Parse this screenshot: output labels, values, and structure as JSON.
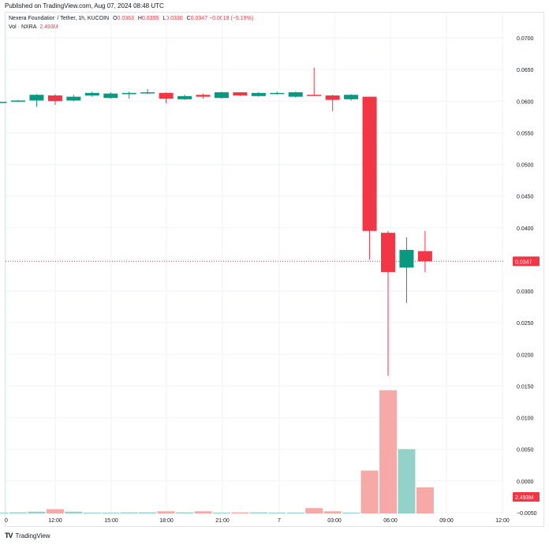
{
  "header": {
    "published": "Published on TradingView.com, Aug 07, 2024 08:48 UTC"
  },
  "legend": {
    "symbol": "Nexera Foundation / Tether, 1h, KUCOIN",
    "o_label": "O",
    "o_value": "0.0363",
    "h_label": "H",
    "h_value": "0.0395",
    "l_label": "L",
    "l_value": "0.0330",
    "c_label": "C",
    "c_value": "0.0347",
    "change": "−0.0019 (−5.19%)",
    "vol_label": "Vol · NXRA",
    "vol_value": "2.493M"
  },
  "footer": {
    "brand": "TradingView",
    "logo_icon": "tradingview-logo-icon"
  },
  "colors": {
    "up": "#089981",
    "down": "#f23645",
    "vol_up": "#92d2c8",
    "vol_down": "#f7a9a7",
    "grid": "#f0f3fa"
  },
  "chart_data": {
    "type": "candlestick",
    "price_labels": [
      "0.0700",
      "0.0650",
      "0.0600",
      "0.0550",
      "0.0500",
      "0.0450",
      "0.0400",
      "0.0350",
      "0.0300",
      "0.0250",
      "0.0200",
      "0.0150",
      "0.0100",
      "0.0050",
      "0.0000",
      "−0.0050"
    ],
    "time_labels": [
      "0",
      "12:00",
      "15:00",
      "18:00",
      "21:00",
      "7",
      "03:00",
      "06:00",
      "09:00",
      "12:00"
    ],
    "last_price_label": "0.0347",
    "last_price": 0.0347,
    "volume_label": "2.493M",
    "grid": true,
    "candles": [
      {
        "o": 0.0599,
        "h": 0.0601,
        "l": 0.0597,
        "c": 0.0599
      },
      {
        "o": 0.06,
        "h": 0.0602,
        "l": 0.0599,
        "c": 0.0601
      },
      {
        "o": 0.0601,
        "h": 0.0611,
        "l": 0.0591,
        "c": 0.061
      },
      {
        "o": 0.0609,
        "h": 0.0611,
        "l": 0.0594,
        "c": 0.06
      },
      {
        "o": 0.0601,
        "h": 0.061,
        "l": 0.06,
        "c": 0.0607
      },
      {
        "o": 0.0609,
        "h": 0.0615,
        "l": 0.0607,
        "c": 0.0613
      },
      {
        "o": 0.0605,
        "h": 0.0614,
        "l": 0.0604,
        "c": 0.0612
      },
      {
        "o": 0.0611,
        "h": 0.0615,
        "l": 0.0604,
        "c": 0.0613
      },
      {
        "o": 0.0613,
        "h": 0.0619,
        "l": 0.0611,
        "c": 0.0614
      },
      {
        "o": 0.0613,
        "h": 0.0614,
        "l": 0.0597,
        "c": 0.0604
      },
      {
        "o": 0.0603,
        "h": 0.061,
        "l": 0.0602,
        "c": 0.0608
      },
      {
        "o": 0.061,
        "h": 0.0612,
        "l": 0.0604,
        "c": 0.0607
      },
      {
        "o": 0.0605,
        "h": 0.0615,
        "l": 0.0604,
        "c": 0.0614
      },
      {
        "o": 0.0614,
        "h": 0.0614,
        "l": 0.0608,
        "c": 0.0609
      },
      {
        "o": 0.0608,
        "h": 0.0614,
        "l": 0.0607,
        "c": 0.0613
      },
      {
        "o": 0.0612,
        "h": 0.0615,
        "l": 0.061,
        "c": 0.0613
      },
      {
        "o": 0.0607,
        "h": 0.0615,
        "l": 0.0606,
        "c": 0.0614
      },
      {
        "o": 0.061,
        "h": 0.0653,
        "l": 0.0608,
        "c": 0.0609
      },
      {
        "o": 0.0609,
        "h": 0.061,
        "l": 0.0584,
        "c": 0.0602
      },
      {
        "o": 0.0603,
        "h": 0.0611,
        "l": 0.0601,
        "c": 0.061
      },
      {
        "o": 0.0607,
        "h": 0.0607,
        "l": 0.035,
        "c": 0.0395
      },
      {
        "o": 0.0392,
        "h": 0.0395,
        "l": 0.0166,
        "c": 0.033
      },
      {
        "o": 0.0337,
        "h": 0.0385,
        "l": 0.0281,
        "c": 0.0365
      },
      {
        "o": 0.0363,
        "h": 0.0395,
        "l": 0.033,
        "c": 0.0347
      }
    ],
    "volume": [
      0.02,
      0.03,
      0.05,
      0.12,
      0.05,
      0.02,
      0.02,
      0.03,
      0.03,
      0.06,
      0.03,
      0.06,
      0.02,
      0.03,
      0.03,
      0.02,
      0.02,
      0.15,
      0.06,
      0.02,
      1.2,
      3.45,
      1.8,
      0.73
    ]
  }
}
